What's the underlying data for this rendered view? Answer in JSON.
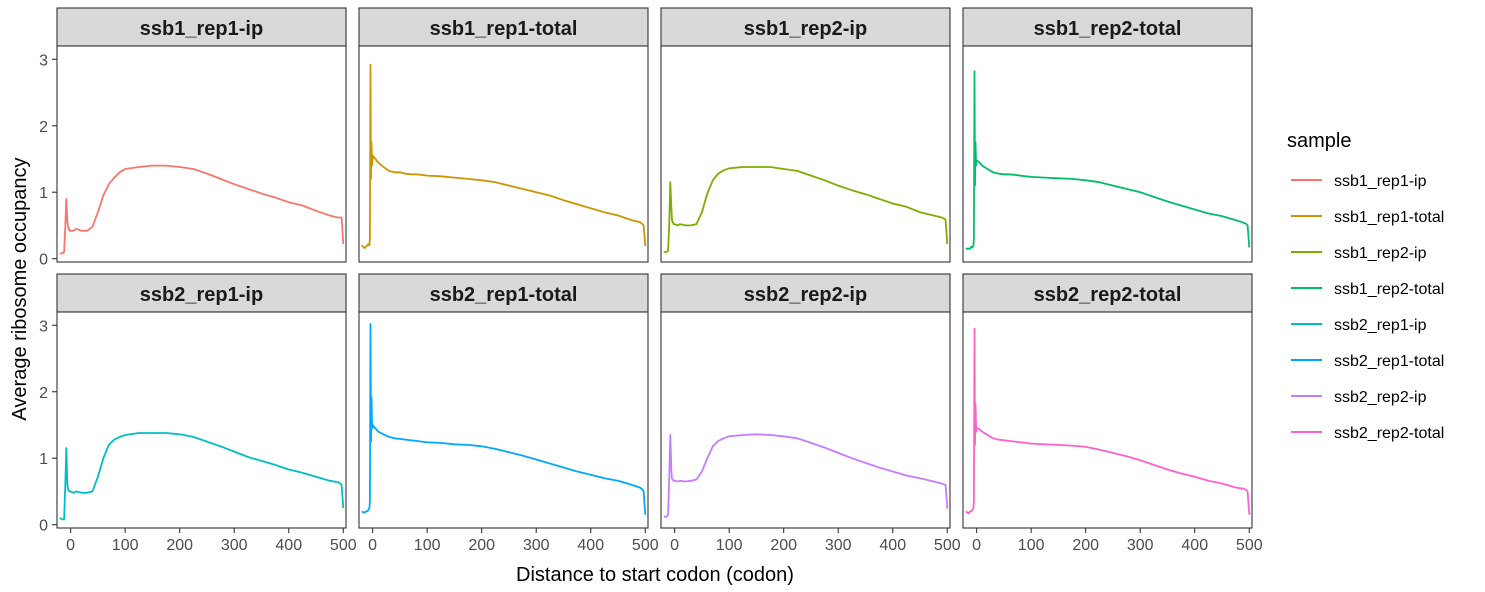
{
  "chart_data": {
    "type": "line",
    "facet_layout": "2x4",
    "xlabel": "Distance to start codon (codon)",
    "ylabel": "Average ribosome occupancy",
    "xlim": [
      -25,
      505
    ],
    "ylim": [
      -0.05,
      3.2
    ],
    "x_ticks": [
      0,
      100,
      200,
      300,
      400,
      500
    ],
    "y_ticks": [
      0,
      1,
      2,
      3
    ],
    "grid": false,
    "legend": {
      "title": "sample",
      "position": "right"
    },
    "x": [
      -20,
      -15,
      -12,
      -10,
      -8,
      -6,
      -5,
      -4,
      -3,
      -2,
      -1,
      0,
      5,
      10,
      20,
      30,
      40,
      50,
      60,
      70,
      80,
      90,
      100,
      125,
      150,
      175,
      200,
      225,
      250,
      275,
      300,
      325,
      350,
      375,
      400,
      425,
      450,
      475,
      490,
      495,
      497,
      500
    ],
    "series": [
      {
        "name": "ssb1_rep1-ip",
        "color": "#F8766D",
        "values": [
          0.08,
          0.08,
          0.1,
          0.45,
          0.9,
          0.55,
          0.5,
          0.45,
          0.45,
          0.42,
          0.42,
          0.42,
          0.42,
          0.45,
          0.42,
          0.42,
          0.48,
          0.7,
          0.95,
          1.12,
          1.22,
          1.3,
          1.35,
          1.38,
          1.4,
          1.4,
          1.38,
          1.35,
          1.28,
          1.2,
          1.12,
          1.05,
          0.98,
          0.92,
          0.85,
          0.8,
          0.72,
          0.65,
          0.62,
          0.62,
          0.62,
          0.22
        ]
      },
      {
        "name": "ssb1_rep1-total",
        "color": "#CD9600",
        "values": [
          0.2,
          0.16,
          0.18,
          0.2,
          0.22,
          0.2,
          0.3,
          2.92,
          1.2,
          1.75,
          1.4,
          1.55,
          1.5,
          1.45,
          1.38,
          1.32,
          1.3,
          1.3,
          1.28,
          1.27,
          1.27,
          1.26,
          1.25,
          1.24,
          1.22,
          1.2,
          1.18,
          1.15,
          1.1,
          1.05,
          1.0,
          0.95,
          0.88,
          0.82,
          0.76,
          0.7,
          0.65,
          0.58,
          0.55,
          0.52,
          0.5,
          0.19
        ]
      },
      {
        "name": "ssb1_rep2-ip",
        "color": "#7CAE00",
        "values": [
          0.1,
          0.1,
          0.12,
          0.5,
          1.15,
          0.75,
          0.6,
          0.55,
          0.55,
          0.52,
          0.52,
          0.52,
          0.5,
          0.52,
          0.5,
          0.5,
          0.52,
          0.7,
          0.98,
          1.18,
          1.28,
          1.33,
          1.36,
          1.38,
          1.38,
          1.38,
          1.35,
          1.32,
          1.25,
          1.18,
          1.1,
          1.03,
          0.97,
          0.9,
          0.83,
          0.78,
          0.7,
          0.65,
          0.62,
          0.6,
          0.58,
          0.22
        ]
      },
      {
        "name": "ssb1_rep2-total",
        "color": "#00BE67",
        "values": [
          0.15,
          0.15,
          0.15,
          0.18,
          0.17,
          0.2,
          0.3,
          2.82,
          1.1,
          1.75,
          1.4,
          1.48,
          1.45,
          1.4,
          1.35,
          1.3,
          1.28,
          1.27,
          1.27,
          1.26,
          1.25,
          1.24,
          1.23,
          1.22,
          1.21,
          1.2,
          1.18,
          1.15,
          1.1,
          1.05,
          1.0,
          0.93,
          0.86,
          0.8,
          0.74,
          0.68,
          0.64,
          0.58,
          0.54,
          0.52,
          0.5,
          0.17
        ]
      },
      {
        "name": "ssb2_rep1-ip",
        "color": "#00BFC4",
        "values": [
          0.1,
          0.08,
          0.08,
          0.55,
          1.15,
          0.6,
          0.55,
          0.52,
          0.5,
          0.5,
          0.5,
          0.5,
          0.48,
          0.5,
          0.48,
          0.48,
          0.5,
          0.72,
          1.0,
          1.2,
          1.28,
          1.32,
          1.35,
          1.38,
          1.38,
          1.38,
          1.36,
          1.32,
          1.25,
          1.18,
          1.1,
          1.02,
          0.96,
          0.9,
          0.83,
          0.78,
          0.72,
          0.66,
          0.64,
          0.62,
          0.6,
          0.25
        ]
      },
      {
        "name": "ssb2_rep1-total",
        "color": "#00A9FF",
        "values": [
          0.2,
          0.18,
          0.2,
          0.2,
          0.22,
          0.25,
          0.35,
          3.02,
          1.25,
          1.92,
          1.45,
          1.5,
          1.45,
          1.4,
          1.36,
          1.32,
          1.3,
          1.29,
          1.28,
          1.27,
          1.26,
          1.25,
          1.24,
          1.23,
          1.21,
          1.2,
          1.18,
          1.14,
          1.09,
          1.04,
          0.98,
          0.92,
          0.86,
          0.8,
          0.75,
          0.7,
          0.66,
          0.6,
          0.56,
          0.53,
          0.5,
          0.15
        ]
      },
      {
        "name": "ssb2_rep2-ip",
        "color": "#C77CFF",
        "values": [
          0.12,
          0.12,
          0.15,
          0.7,
          1.35,
          0.8,
          0.7,
          0.68,
          0.68,
          0.66,
          0.66,
          0.66,
          0.65,
          0.66,
          0.65,
          0.66,
          0.68,
          0.8,
          1.0,
          1.18,
          1.26,
          1.3,
          1.33,
          1.35,
          1.36,
          1.35,
          1.33,
          1.3,
          1.23,
          1.16,
          1.08,
          1.0,
          0.93,
          0.86,
          0.8,
          0.74,
          0.7,
          0.65,
          0.62,
          0.6,
          0.6,
          0.24
        ]
      },
      {
        "name": "ssb2_rep2-total",
        "color": "#FF61CC",
        "values": [
          0.2,
          0.17,
          0.2,
          0.2,
          0.22,
          0.24,
          0.35,
          2.95,
          1.2,
          1.82,
          1.4,
          1.45,
          1.44,
          1.4,
          1.35,
          1.3,
          1.28,
          1.27,
          1.26,
          1.25,
          1.24,
          1.23,
          1.22,
          1.21,
          1.2,
          1.19,
          1.17,
          1.13,
          1.08,
          1.03,
          0.97,
          0.9,
          0.83,
          0.77,
          0.72,
          0.66,
          0.62,
          0.56,
          0.54,
          0.52,
          0.5,
          0.15
        ]
      }
    ]
  }
}
